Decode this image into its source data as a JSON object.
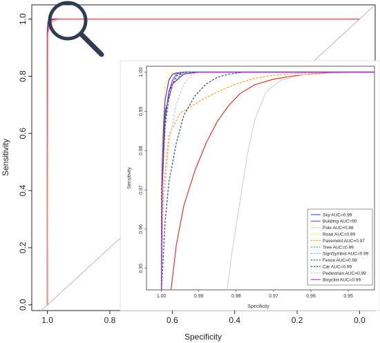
{
  "chart_data": [
    {
      "type": "line",
      "title": "",
      "xlabel": "Specificity",
      "ylabel": "Sensitivity",
      "xlim": [
        1.05,
        -0.05
      ],
      "ylim": [
        -0.02,
        1.05
      ],
      "x_ticks": [
        1.0,
        0.8,
        0.6,
        0.4,
        0.2,
        0.0
      ],
      "x_tick_labels": [
        "1.0",
        "0.8",
        "0.6",
        "0.4",
        "0.2",
        "0.0"
      ],
      "y_ticks": [
        0.0,
        0.2,
        0.4,
        0.6,
        0.8,
        1.0
      ],
      "y_tick_labels": [
        "0.0",
        "0.2",
        "0.4",
        "0.6",
        "0.8",
        "1.0"
      ],
      "reference_line": "diagonal",
      "zoom_marker": "magnifier-icon",
      "series": [
        {
          "color": "#7b2fbe",
          "x": [
            1.0,
            1.0,
            0.998,
            0.99,
            0.98,
            0.0
          ],
          "y": [
            0.0,
            0.95,
            0.99,
            0.999,
            1.0,
            1.0
          ]
        },
        {
          "color": "#e03b8b",
          "x": [
            1.0,
            1.0,
            0.995,
            0.985,
            0.97,
            0.0
          ],
          "y": [
            0.0,
            0.94,
            0.985,
            0.997,
            1.0,
            1.0
          ]
        },
        {
          "color": "#f4a460",
          "x": [
            1.0,
            0.998,
            0.99,
            0.975,
            0.96,
            0.0
          ],
          "y": [
            0.0,
            0.95,
            0.985,
            0.996,
            1.0,
            1.0
          ]
        }
      ]
    },
    {
      "type": "line",
      "title": "",
      "xlabel": "Specificity",
      "ylabel": "Sensitivity",
      "xlim": [
        1.004,
        0.943
      ],
      "ylim": [
        0.9445,
        1.0015
      ],
      "x_ticks": [
        1.0,
        0.99,
        0.98,
        0.97,
        0.96,
        0.95
      ],
      "x_tick_labels": [
        "1.00",
        "0.99",
        "0.98",
        "0.97",
        "0.96",
        "0.95"
      ],
      "y_ticks": [
        0.95,
        0.96,
        0.97,
        0.98,
        0.99,
        1.0
      ],
      "y_tick_labels": [
        "0.95",
        "0.96",
        "0.97",
        "0.98",
        "0.99",
        "1.00"
      ],
      "legend_position": "bottom-right",
      "series": [
        {
          "name": "Sky AUC=0.99",
          "color": "#3a3fc4",
          "dash": "solid",
          "x": [
            1.0,
            1.0,
            0.9995,
            0.999,
            0.998,
            0.997,
            0.995,
            0.99,
            0.95,
            0.943
          ],
          "y": [
            0.944,
            0.97,
            0.985,
            0.993,
            0.998,
            0.9995,
            1.0,
            1.0,
            1.0,
            1.0
          ]
        },
        {
          "name": "Building AUC=90",
          "color": "#8b3fd6",
          "dash": "solid",
          "x": [
            1.0,
            0.9998,
            0.999,
            0.998,
            0.997,
            0.996,
            0.994,
            0.99,
            0.95,
            0.943
          ],
          "y": [
            0.944,
            0.97,
            0.988,
            0.995,
            0.998,
            0.9995,
            1.0,
            1.0,
            1.0,
            1.0
          ]
        },
        {
          "name": "Pole AUC=0.88",
          "color": "#d4d4d4",
          "dash": "solid",
          "x": [
            0.9825,
            0.981,
            0.979,
            0.977,
            0.975,
            0.972,
            0.968,
            0.962,
            0.955,
            0.948,
            0.943
          ],
          "y": [
            0.944,
            0.955,
            0.967,
            0.979,
            0.988,
            0.995,
            0.998,
            0.9993,
            0.9997,
            1.0,
            1.0
          ]
        },
        {
          "name": "Road AUC=0.99",
          "color": "#ffe14d",
          "dash": "dash",
          "x": [
            1.0,
            1.0,
            0.9995,
            0.999,
            0.998,
            0.996,
            0.99,
            0.95,
            0.943
          ],
          "y": [
            0.944,
            0.975,
            0.99,
            0.997,
            0.9995,
            1.0,
            1.0,
            1.0,
            1.0
          ]
        },
        {
          "name": "Pavement AUC=0.97",
          "color": "#f5a623",
          "dash": "dash",
          "x": [
            1.0,
            0.9995,
            0.998,
            0.995,
            0.99,
            0.985,
            0.98,
            0.975,
            0.97,
            0.965,
            0.96,
            0.955,
            0.95,
            0.943
          ],
          "y": [
            0.944,
            0.97,
            0.984,
            0.9895,
            0.9925,
            0.995,
            0.997,
            0.9984,
            0.9992,
            0.9996,
            0.9998,
            1.0,
            1.0,
            1.0
          ]
        },
        {
          "name": "Tree AUC=0.99",
          "color": "#22b14c",
          "dash": "dash",
          "x": [
            1.0,
            0.9998,
            0.999,
            0.998,
            0.997,
            0.995,
            0.993,
            0.99,
            0.95,
            0.943
          ],
          "y": [
            0.944,
            0.972,
            0.986,
            0.993,
            0.997,
            0.999,
            1.0,
            1.0,
            1.0,
            1.0
          ]
        },
        {
          "name": "SignSymbol AUC=0.99",
          "color": "#5bc8e8",
          "dash": "dash",
          "x": [
            1.0,
            0.9998,
            0.999,
            0.997,
            0.995,
            0.993,
            0.99,
            0.95,
            0.943
          ],
          "y": [
            0.944,
            0.976,
            0.99,
            0.997,
            0.9993,
            1.0,
            1.0,
            1.0,
            1.0
          ]
        },
        {
          "name": "Fence AUC=0.98",
          "color": "#2b4e8c",
          "dash": "dash",
          "x": [
            1.0,
            0.999,
            0.998,
            0.996,
            0.994,
            0.991,
            0.988,
            0.985,
            0.982,
            0.978,
            0.97,
            0.95,
            0.943
          ],
          "y": [
            0.944,
            0.962,
            0.972,
            0.982,
            0.989,
            0.994,
            0.997,
            0.9987,
            0.9995,
            1.0,
            1.0,
            1.0,
            1.0
          ]
        },
        {
          "name": "Car AUC=0.99",
          "color": "#1b3a5c",
          "dash": "dash",
          "x": [
            1.0,
            0.9998,
            0.999,
            0.998,
            0.996,
            0.994,
            0.99,
            0.95,
            0.943
          ],
          "y": [
            0.944,
            0.972,
            0.988,
            0.995,
            0.999,
            1.0,
            1.0,
            1.0,
            1.0
          ]
        },
        {
          "name": "Pedestrian AUC=0.99",
          "color": "#f3b5c8",
          "dash": "dash",
          "x": [
            1.0,
            0.9995,
            0.998,
            0.996,
            0.994,
            0.992,
            0.99,
            0.95,
            0.943
          ],
          "y": [
            0.944,
            0.966,
            0.982,
            0.992,
            0.997,
            0.9993,
            1.0,
            1.0,
            1.0
          ]
        },
        {
          "name": "Bicyclist AUC=0.99",
          "color": "#a32fd1",
          "dash": "solid",
          "x": [
            1.0,
            0.9998,
            0.999,
            0.997,
            0.994,
            0.99,
            0.95,
            0.943
          ],
          "y": [
            0.944,
            0.975,
            0.99,
            0.997,
            0.9995,
            1.0,
            1.0,
            1.0
          ]
        },
        {
          "color": "#e8342b",
          "dash": "solid",
          "x": [
            0.9975,
            0.996,
            0.994,
            0.991,
            0.988,
            0.985,
            0.982,
            0.979,
            0.975,
            0.97,
            0.965,
            0.96,
            0.955,
            0.95,
            0.945,
            0.943
          ],
          "y": [
            0.944,
            0.956,
            0.966,
            0.975,
            0.982,
            0.9875,
            0.9915,
            0.9945,
            0.9968,
            0.9982,
            0.999,
            0.9995,
            0.9998,
            1.0,
            1.0,
            1.0
          ]
        }
      ]
    }
  ]
}
